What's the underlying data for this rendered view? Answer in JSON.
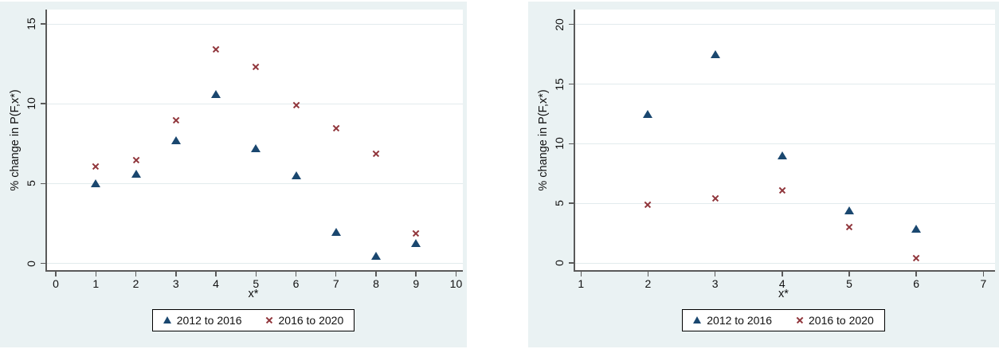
{
  "figure": {
    "background_color": "#eaf2f3",
    "plot_background": "#ffffff",
    "grid_color": "#e2ebed",
    "axis_color": "#5a5a5a",
    "series_colors": {
      "triangle_navy": "#1a476f",
      "cross_maroon": "#90353b"
    },
    "legend_items": [
      "2012 to 2016",
      "2016 to 2020"
    ]
  },
  "chart_data": [
    {
      "type": "scatter",
      "title": "",
      "xlabel": "x*",
      "ylabel": "% change in P(F,x*)",
      "xlim": [
        -0.26,
        10.13
      ],
      "ylim": [
        -0.42,
        15.9
      ],
      "xticks": [
        0,
        1,
        2,
        3,
        4,
        5,
        6,
        7,
        8,
        9,
        10
      ],
      "yticks": [
        0,
        5,
        10,
        15
      ],
      "grid": "horizontal",
      "legend_position": "bottom",
      "series": [
        {
          "name": "2012 to 2016",
          "marker": "triangle",
          "color": "#1a476f",
          "x": [
            1,
            2,
            3,
            4,
            5,
            6,
            7,
            8,
            9
          ],
          "y": [
            5.0,
            5.6,
            7.7,
            10.6,
            7.2,
            5.5,
            2.0,
            0.5,
            1.3
          ]
        },
        {
          "name": "2016 to 2020",
          "marker": "x",
          "color": "#90353b",
          "x": [
            1,
            2,
            3,
            4,
            5,
            6,
            7,
            8,
            9
          ],
          "y": [
            6.1,
            6.5,
            9.0,
            13.4,
            12.3,
            9.9,
            8.5,
            6.9,
            1.9
          ]
        }
      ]
    },
    {
      "type": "scatter",
      "title": "",
      "xlabel": "x*",
      "ylabel": "% change in P(F,x*)",
      "xlim": [
        0.89,
        7.15
      ],
      "ylim": [
        -0.6,
        21.25
      ],
      "xticks": [
        1,
        2,
        3,
        4,
        5,
        6,
        7
      ],
      "yticks": [
        0,
        5,
        10,
        15,
        20
      ],
      "grid": "horizontal",
      "legend_position": "bottom",
      "series": [
        {
          "name": "2012 to 2016",
          "marker": "triangle",
          "color": "#1a476f",
          "x": [
            2,
            3,
            4,
            5,
            6
          ],
          "y": [
            12.5,
            17.5,
            9.0,
            4.4,
            2.9
          ]
        },
        {
          "name": "2016 to 2020",
          "marker": "x",
          "color": "#90353b",
          "x": [
            2,
            3,
            4,
            5,
            6
          ],
          "y": [
            4.9,
            5.4,
            6.1,
            3.0,
            0.4
          ]
        }
      ]
    }
  ]
}
